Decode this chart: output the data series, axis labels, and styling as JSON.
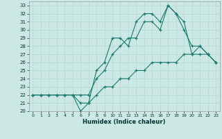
{
  "xlabel": "Humidex (Indice chaleur)",
  "bg_color": "#cce8e4",
  "grid_color": "#b0d8d4",
  "line_color": "#1a7a6e",
  "line1_x": [
    0,
    1,
    2,
    3,
    4,
    5,
    6,
    7,
    8,
    9,
    10,
    11,
    12,
    13,
    14,
    15,
    16,
    17,
    18,
    19,
    20,
    21,
    22,
    23
  ],
  "line1_y": [
    22,
    22,
    22,
    22,
    22,
    22,
    21,
    21,
    22,
    23,
    23,
    24,
    24,
    25,
    25,
    26,
    26,
    26,
    26,
    27,
    27,
    27,
    27,
    26
  ],
  "line2_x": [
    0,
    1,
    2,
    3,
    4,
    5,
    6,
    7,
    8,
    9,
    10,
    11,
    12,
    13,
    14,
    15,
    16,
    17,
    18,
    19,
    20,
    21,
    22,
    23
  ],
  "line2_y": [
    22,
    22,
    22,
    22,
    22,
    22,
    20,
    21,
    25,
    26,
    29,
    29,
    28,
    31,
    32,
    32,
    31,
    33,
    32,
    30,
    28,
    28,
    27,
    26
  ],
  "line3_x": [
    0,
    1,
    2,
    3,
    4,
    5,
    6,
    7,
    8,
    9,
    10,
    11,
    12,
    13,
    14,
    15,
    16,
    17,
    18,
    19,
    20,
    21,
    22,
    23
  ],
  "line3_y": [
    22,
    22,
    22,
    22,
    22,
    22,
    22,
    22,
    24,
    25,
    27,
    28,
    29,
    29,
    31,
    31,
    30,
    33,
    32,
    31,
    27,
    28,
    27,
    26
  ],
  "ylim": [
    20,
    33.5
  ],
  "xlim": [
    -0.5,
    23.5
  ],
  "yticks": [
    20,
    21,
    22,
    23,
    24,
    25,
    26,
    27,
    28,
    29,
    30,
    31,
    32,
    33
  ],
  "xticks": [
    0,
    1,
    2,
    3,
    4,
    5,
    6,
    7,
    8,
    9,
    10,
    11,
    12,
    13,
    14,
    15,
    16,
    17,
    18,
    19,
    20,
    21,
    22,
    23
  ],
  "tick_fontsize": 5,
  "xlabel_fontsize": 6
}
